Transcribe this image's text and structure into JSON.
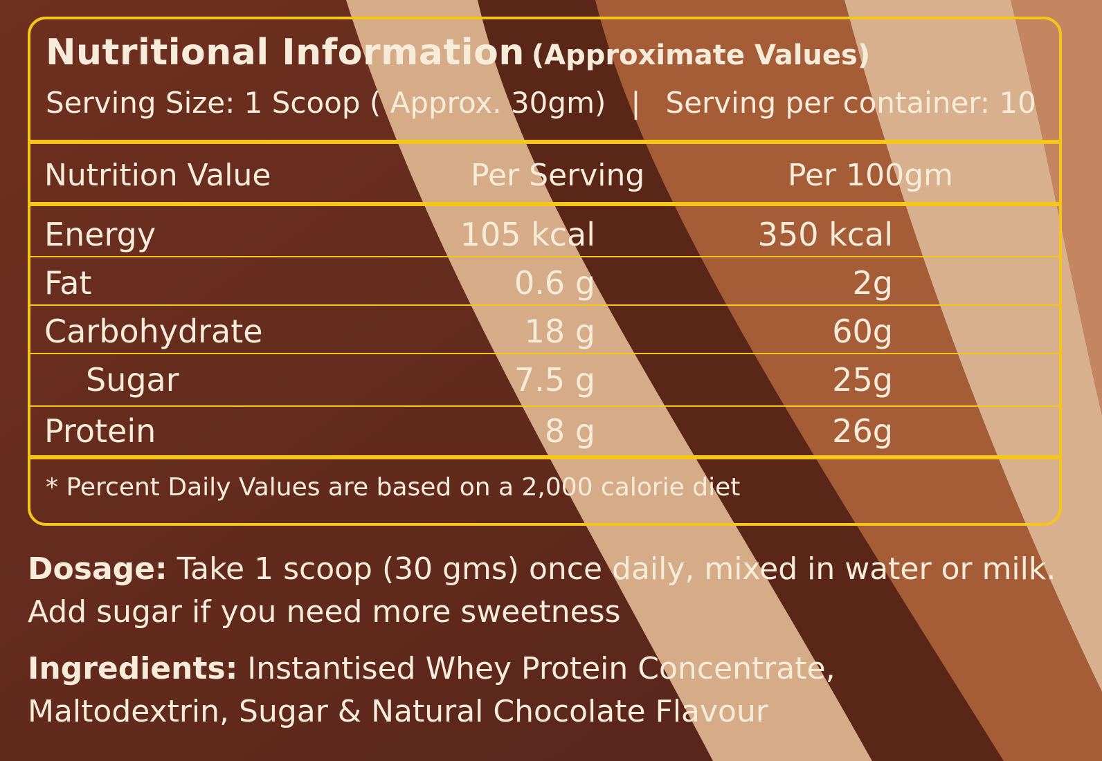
{
  "colors": {
    "border": "#f5c518",
    "text": "#f6ecd9",
    "background_dark": "#5e2a1a",
    "stripe_light": "#d9ad8a",
    "stripe_mid": "#a8603a"
  },
  "header": {
    "title": "Nutritional Information",
    "subtitle": "(Approximate Values)",
    "serving_size": "Serving Size: 1 Scoop ( Approx. 30gm)",
    "separator": "|",
    "servings_per_container": "Serving per container: 10"
  },
  "table": {
    "columns": [
      "Nutrition Value",
      "Per Serving",
      "Per 100gm"
    ],
    "rows": [
      {
        "name": "Energy",
        "per_serving": "105 kcal",
        "per_100g": "350 kcal"
      },
      {
        "name": "Fat",
        "per_serving": "0.6 g",
        "per_100g": "2g"
      },
      {
        "name": "Carbohydrate",
        "per_serving": "18 g",
        "per_100g": "60g"
      },
      {
        "name": "Sugar",
        "per_serving": "7.5 g",
        "per_100g": "25g"
      },
      {
        "name": "Protein",
        "per_serving": "8 g",
        "per_100g": "26g"
      }
    ],
    "footnote": "* Percent Daily Values are based on a 2,000 calorie diet"
  },
  "dosage": {
    "label": "Dosage:",
    "text_line1": "Take 1 scoop (30 gms) once daily, mixed in water or milk.",
    "text_line2": "Add sugar if you need more sweetness"
  },
  "ingredients": {
    "label": "Ingredients:",
    "text_line1": "Instantised Whey Protein Concentrate,",
    "text_line2": "Maltodextrin, Sugar & Natural Chocolate Flavour"
  }
}
